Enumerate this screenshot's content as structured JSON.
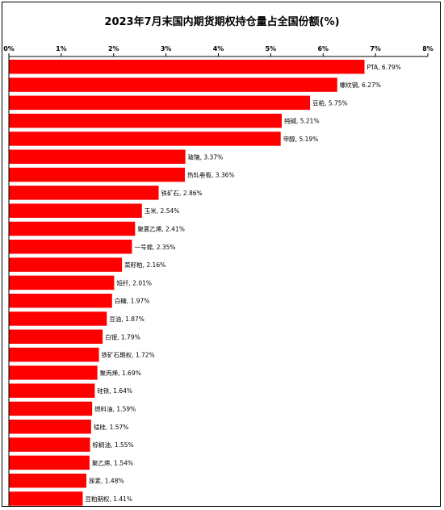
{
  "chart_data": {
    "type": "bar",
    "orientation": "horizontal",
    "title": "2023年7月末国内期货期权持仓量占全国份额(%)",
    "xlim": [
      0,
      8
    ],
    "x_ticks": [
      "0%",
      "1%",
      "2%",
      "3%",
      "4%",
      "5%",
      "6%",
      "7%",
      "8%"
    ],
    "x_axis_position": "top",
    "grid": false,
    "bar_color": "#ff0000",
    "categories": [
      "PTA",
      "螺纹钢",
      "豆粕",
      "纯碱",
      "甲醇",
      "玻璃",
      "热轧卷板",
      "铁矿石",
      "玉米",
      "聚氯乙烯",
      "一号棉",
      "菜籽粕",
      "短纤",
      "白糖",
      "豆油",
      "白银",
      "铁矿石期权",
      "聚丙烯",
      "硅铁",
      "燃料油",
      "锰硅",
      "棕榈油",
      "聚乙烯",
      "尿素",
      "豆粕期权"
    ],
    "values": [
      6.79,
      6.27,
      5.75,
      5.21,
      5.19,
      3.37,
      3.36,
      2.86,
      2.54,
      2.41,
      2.35,
      2.16,
      2.01,
      1.97,
      1.87,
      1.79,
      1.72,
      1.69,
      1.64,
      1.59,
      1.57,
      1.55,
      1.54,
      1.48,
      1.41
    ],
    "data_labels": [
      "PTA, 6.79%",
      "螺纹钢, 6.27%",
      "豆粕, 5.75%",
      "纯碱, 5.21%",
      "甲醇, 5.19%",
      "玻璃, 3.37%",
      "热轧卷板, 3.36%",
      "铁矿石, 2.86%",
      "玉米, 2.54%",
      "聚氯乙烯, 2.41%",
      "一号棉, 2.35%",
      "菜籽粕, 2.16%",
      "短纤, 2.01%",
      "白糖, 1.97%",
      "豆油, 1.87%",
      "白银, 1.79%",
      "铁矿石期权, 1.72%",
      "聚丙烯, 1.69%",
      "硅铁, 1.64%",
      "燃料油, 1.59%",
      "锰硅, 1.57%",
      "棕榈油, 1.55%",
      "聚乙烯, 1.54%",
      "尿素, 1.48%",
      "豆粕期权, 1.41%"
    ]
  }
}
